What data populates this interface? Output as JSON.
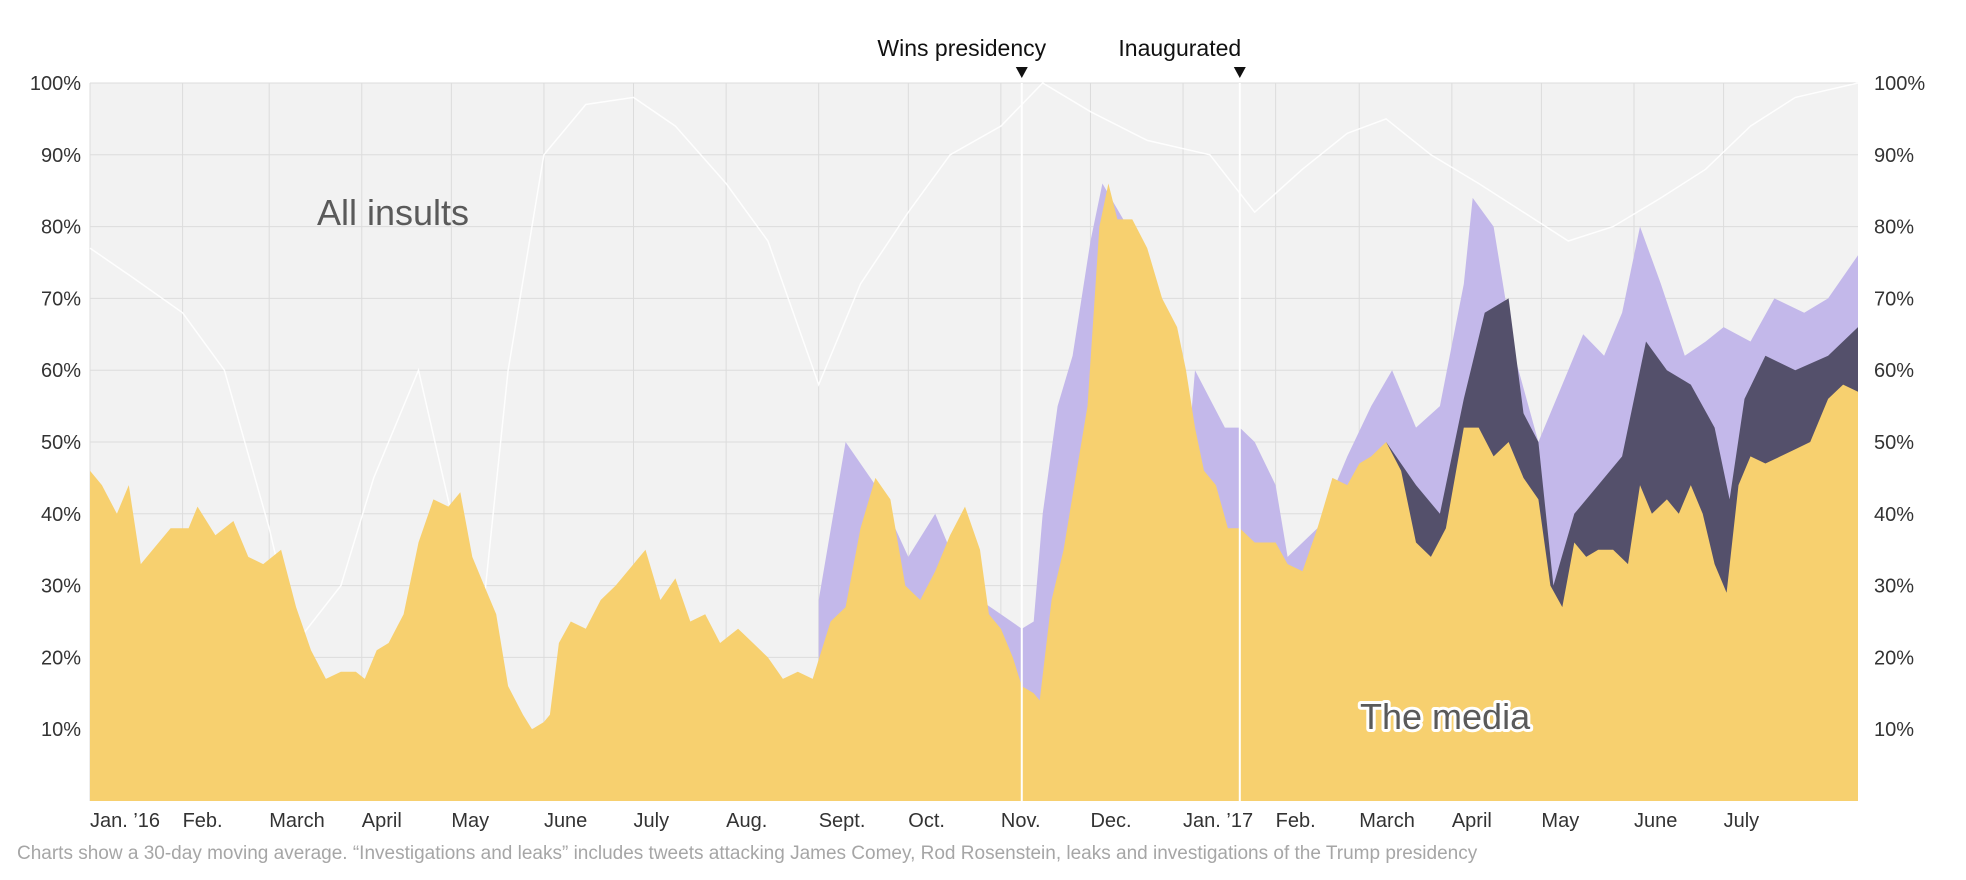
{
  "footnote": "Charts show a 30-day moving average. “Investigations and leaks” includes tweets attacking James Comey, Rod Rosenstein, leaks and investigations of the Trump presidency",
  "chart_data": {
    "type": "area",
    "y_ticks": [
      "10%",
      "20%",
      "30%",
      "40%",
      "50%",
      "60%",
      "70%",
      "80%",
      "90%",
      "100%"
    ],
    "ylim": [
      0,
      100
    ],
    "x_range": [
      "2016-01-01",
      "2017-08-15"
    ],
    "months": [
      {
        "date": "2016-01-01",
        "label": "Jan. ’16"
      },
      {
        "date": "2016-02-01",
        "label": "Feb."
      },
      {
        "date": "2016-03-01",
        "label": "March"
      },
      {
        "date": "2016-04-01",
        "label": "April"
      },
      {
        "date": "2016-05-01",
        "label": "May"
      },
      {
        "date": "2016-06-01",
        "label": "June"
      },
      {
        "date": "2016-07-01",
        "label": "July"
      },
      {
        "date": "2016-08-01",
        "label": "Aug."
      },
      {
        "date": "2016-09-01",
        "label": "Sept."
      },
      {
        "date": "2016-10-01",
        "label": "Oct."
      },
      {
        "date": "2016-11-01",
        "label": "Nov."
      },
      {
        "date": "2016-12-01",
        "label": "Dec."
      },
      {
        "date": "2017-01-01",
        "label": "Jan. ’17"
      },
      {
        "date": "2017-02-01",
        "label": "Feb."
      },
      {
        "date": "2017-03-01",
        "label": "March"
      },
      {
        "date": "2017-04-01",
        "label": "April"
      },
      {
        "date": "2017-05-01",
        "label": "May"
      },
      {
        "date": "2017-06-01",
        "label": "June"
      },
      {
        "date": "2017-07-01",
        "label": "July"
      }
    ],
    "events": [
      {
        "date": "2016-11-08",
        "label": "Wins presidency"
      },
      {
        "date": "2017-01-20",
        "label": "Inaugurated"
      }
    ],
    "area_labels": [
      {
        "text": "All insults",
        "position": "upper-left"
      },
      {
        "text": "The media",
        "position": "lower-right"
      }
    ],
    "colors": {
      "plot_bg": "#f2f2f2",
      "grid": "#dcdcdc",
      "all_insults_line": "#ffffff",
      "media": "#f7d06f",
      "top_layer": "#c3b8ea",
      "middle_layer": "#54506b",
      "event_line": "#ffffff"
    },
    "series": [
      {
        "id": "all_insults",
        "points": [
          [
            "2016-01-01",
            77
          ],
          [
            "2016-01-15",
            73
          ],
          [
            "2016-02-01",
            68
          ],
          [
            "2016-02-15",
            60
          ],
          [
            "2016-03-01",
            38
          ],
          [
            "2016-03-10",
            22
          ],
          [
            "2016-03-25",
            30
          ],
          [
            "2016-04-05",
            45
          ],
          [
            "2016-04-20",
            60
          ],
          [
            "2016-05-01",
            40
          ],
          [
            "2016-05-10",
            20
          ],
          [
            "2016-05-20",
            60
          ],
          [
            "2016-06-01",
            90
          ],
          [
            "2016-06-15",
            97
          ],
          [
            "2016-07-01",
            98
          ],
          [
            "2016-07-15",
            94
          ],
          [
            "2016-08-01",
            86
          ],
          [
            "2016-08-15",
            78
          ],
          [
            "2016-09-01",
            58
          ],
          [
            "2016-09-15",
            72
          ],
          [
            "2016-10-01",
            82
          ],
          [
            "2016-10-15",
            90
          ],
          [
            "2016-11-01",
            94
          ],
          [
            "2016-11-15",
            100
          ],
          [
            "2016-12-01",
            96
          ],
          [
            "2016-12-20",
            92
          ],
          [
            "2017-01-10",
            90
          ],
          [
            "2017-01-25",
            82
          ],
          [
            "2017-02-10",
            88
          ],
          [
            "2017-02-25",
            93
          ],
          [
            "2017-03-10",
            95
          ],
          [
            "2017-03-25",
            90
          ],
          [
            "2017-04-10",
            86
          ],
          [
            "2017-04-25",
            82
          ],
          [
            "2017-05-10",
            78
          ],
          [
            "2017-05-25",
            80
          ],
          [
            "2017-06-10",
            84
          ],
          [
            "2017-06-25",
            88
          ],
          [
            "2017-07-10",
            94
          ],
          [
            "2017-07-25",
            98
          ],
          [
            "2017-08-15",
            100
          ]
        ]
      },
      {
        "id": "top_layer",
        "points": [
          [
            "2016-09-01",
            28
          ],
          [
            "2016-09-10",
            50
          ],
          [
            "2016-09-20",
            44
          ],
          [
            "2016-10-01",
            34
          ],
          [
            "2016-10-10",
            40
          ],
          [
            "2016-10-18",
            32
          ],
          [
            "2016-10-25",
            28
          ],
          [
            "2016-11-01",
            26
          ],
          [
            "2016-11-08",
            24
          ],
          [
            "2016-11-12",
            25
          ],
          [
            "2016-11-15",
            40
          ],
          [
            "2016-11-20",
            55
          ],
          [
            "2016-11-25",
            62
          ],
          [
            "2016-12-01",
            78
          ],
          [
            "2016-12-05",
            86
          ],
          [
            "2016-12-12",
            81
          ],
          [
            "2016-12-20",
            75
          ],
          [
            "2016-12-28",
            66
          ],
          [
            "2017-01-03",
            50
          ],
          [
            "2017-01-05",
            60
          ],
          [
            "2017-01-10",
            56
          ],
          [
            "2017-01-15",
            52
          ],
          [
            "2017-01-20",
            52
          ],
          [
            "2017-01-25",
            50
          ],
          [
            "2017-02-01",
            44
          ],
          [
            "2017-02-05",
            34
          ],
          [
            "2017-02-15",
            38
          ],
          [
            "2017-02-25",
            48
          ],
          [
            "2017-03-05",
            55
          ],
          [
            "2017-03-12",
            60
          ],
          [
            "2017-03-20",
            52
          ],
          [
            "2017-03-28",
            55
          ],
          [
            "2017-04-05",
            72
          ],
          [
            "2017-04-08",
            84
          ],
          [
            "2017-04-15",
            80
          ],
          [
            "2017-04-22",
            62
          ],
          [
            "2017-04-30",
            50
          ],
          [
            "2017-05-08",
            58
          ],
          [
            "2017-05-15",
            65
          ],
          [
            "2017-05-22",
            62
          ],
          [
            "2017-05-28",
            68
          ],
          [
            "2017-06-03",
            80
          ],
          [
            "2017-06-10",
            72
          ],
          [
            "2017-06-18",
            62
          ],
          [
            "2017-06-25",
            64
          ],
          [
            "2017-07-01",
            66
          ],
          [
            "2017-07-10",
            64
          ],
          [
            "2017-07-18",
            70
          ],
          [
            "2017-07-28",
            68
          ],
          [
            "2017-08-05",
            70
          ],
          [
            "2017-08-15",
            76
          ]
        ]
      },
      {
        "id": "middle_layer",
        "points": [
          [
            "2017-03-10",
            50
          ],
          [
            "2017-03-20",
            44
          ],
          [
            "2017-03-28",
            40
          ],
          [
            "2017-04-05",
            56
          ],
          [
            "2017-04-12",
            68
          ],
          [
            "2017-04-20",
            70
          ],
          [
            "2017-04-25",
            54
          ],
          [
            "2017-04-30",
            50
          ],
          [
            "2017-05-05",
            30
          ],
          [
            "2017-05-12",
            40
          ],
          [
            "2017-05-20",
            44
          ],
          [
            "2017-05-28",
            48
          ],
          [
            "2017-06-05",
            64
          ],
          [
            "2017-06-12",
            60
          ],
          [
            "2017-06-20",
            58
          ],
          [
            "2017-06-28",
            52
          ],
          [
            "2017-07-03",
            42
          ],
          [
            "2017-07-08",
            56
          ],
          [
            "2017-07-15",
            62
          ],
          [
            "2017-07-25",
            60
          ],
          [
            "2017-08-05",
            62
          ],
          [
            "2017-08-15",
            66
          ]
        ]
      },
      {
        "id": "media",
        "points": [
          [
            "2016-01-01",
            46
          ],
          [
            "2016-01-05",
            44
          ],
          [
            "2016-01-10",
            40
          ],
          [
            "2016-01-14",
            44
          ],
          [
            "2016-01-18",
            33
          ],
          [
            "2016-01-22",
            35
          ],
          [
            "2016-01-28",
            38
          ],
          [
            "2016-02-03",
            38
          ],
          [
            "2016-02-06",
            41
          ],
          [
            "2016-02-12",
            37
          ],
          [
            "2016-02-18",
            39
          ],
          [
            "2016-02-23",
            34
          ],
          [
            "2016-02-28",
            33
          ],
          [
            "2016-03-05",
            35
          ],
          [
            "2016-03-10",
            27
          ],
          [
            "2016-03-15",
            21
          ],
          [
            "2016-03-20",
            17
          ],
          [
            "2016-03-25",
            18
          ],
          [
            "2016-03-30",
            18
          ],
          [
            "2016-04-02",
            17
          ],
          [
            "2016-04-06",
            21
          ],
          [
            "2016-04-10",
            22
          ],
          [
            "2016-04-15",
            26
          ],
          [
            "2016-04-20",
            36
          ],
          [
            "2016-04-25",
            42
          ],
          [
            "2016-04-30",
            41
          ],
          [
            "2016-05-04",
            43
          ],
          [
            "2016-05-08",
            34
          ],
          [
            "2016-05-12",
            30
          ],
          [
            "2016-05-16",
            26
          ],
          [
            "2016-05-20",
            16
          ],
          [
            "2016-05-25",
            12
          ],
          [
            "2016-05-28",
            10
          ],
          [
            "2016-06-01",
            11
          ],
          [
            "2016-06-03",
            12
          ],
          [
            "2016-06-06",
            22
          ],
          [
            "2016-06-10",
            25
          ],
          [
            "2016-06-15",
            24
          ],
          [
            "2016-06-20",
            28
          ],
          [
            "2016-06-25",
            30
          ],
          [
            "2016-07-01",
            33
          ],
          [
            "2016-07-05",
            35
          ],
          [
            "2016-07-10",
            28
          ],
          [
            "2016-07-15",
            31
          ],
          [
            "2016-07-20",
            25
          ],
          [
            "2016-07-25",
            26
          ],
          [
            "2016-07-30",
            22
          ],
          [
            "2016-08-05",
            24
          ],
          [
            "2016-08-10",
            22
          ],
          [
            "2016-08-15",
            20
          ],
          [
            "2016-08-20",
            17
          ],
          [
            "2016-08-25",
            18
          ],
          [
            "2016-08-30",
            17
          ],
          [
            "2016-09-05",
            25
          ],
          [
            "2016-09-10",
            27
          ],
          [
            "2016-09-15",
            38
          ],
          [
            "2016-09-20",
            45
          ],
          [
            "2016-09-25",
            42
          ],
          [
            "2016-09-30",
            30
          ],
          [
            "2016-10-05",
            28
          ],
          [
            "2016-10-10",
            32
          ],
          [
            "2016-10-15",
            37
          ],
          [
            "2016-10-20",
            41
          ],
          [
            "2016-10-25",
            35
          ],
          [
            "2016-10-28",
            26
          ],
          [
            "2016-11-01",
            24
          ],
          [
            "2016-11-05",
            20
          ],
          [
            "2016-11-08",
            16
          ],
          [
            "2016-11-12",
            15
          ],
          [
            "2016-11-14",
            14
          ],
          [
            "2016-11-18",
            28
          ],
          [
            "2016-11-22",
            35
          ],
          [
            "2016-11-26",
            45
          ],
          [
            "2016-11-30",
            55
          ],
          [
            "2016-12-04",
            80
          ],
          [
            "2016-12-07",
            86
          ],
          [
            "2016-12-10",
            81
          ],
          [
            "2016-12-15",
            81
          ],
          [
            "2016-12-20",
            77
          ],
          [
            "2016-12-25",
            70
          ],
          [
            "2016-12-30",
            66
          ],
          [
            "2017-01-02",
            60
          ],
          [
            "2017-01-05",
            52
          ],
          [
            "2017-01-08",
            46
          ],
          [
            "2017-01-12",
            44
          ],
          [
            "2017-01-16",
            38
          ],
          [
            "2017-01-20",
            38
          ],
          [
            "2017-01-25",
            36
          ],
          [
            "2017-02-01",
            36
          ],
          [
            "2017-02-05",
            33
          ],
          [
            "2017-02-10",
            32
          ],
          [
            "2017-02-15",
            38
          ],
          [
            "2017-02-20",
            45
          ],
          [
            "2017-02-25",
            44
          ],
          [
            "2017-03-01",
            47
          ],
          [
            "2017-03-05",
            48
          ],
          [
            "2017-03-10",
            50
          ],
          [
            "2017-03-15",
            46
          ],
          [
            "2017-03-20",
            36
          ],
          [
            "2017-03-25",
            34
          ],
          [
            "2017-03-30",
            38
          ],
          [
            "2017-04-05",
            52
          ],
          [
            "2017-04-10",
            52
          ],
          [
            "2017-04-15",
            48
          ],
          [
            "2017-04-20",
            50
          ],
          [
            "2017-04-25",
            45
          ],
          [
            "2017-04-30",
            42
          ],
          [
            "2017-05-04",
            30
          ],
          [
            "2017-05-08",
            27
          ],
          [
            "2017-05-12",
            36
          ],
          [
            "2017-05-16",
            34
          ],
          [
            "2017-05-20",
            35
          ],
          [
            "2017-05-25",
            35
          ],
          [
            "2017-05-30",
            33
          ],
          [
            "2017-06-03",
            44
          ],
          [
            "2017-06-07",
            40
          ],
          [
            "2017-06-12",
            42
          ],
          [
            "2017-06-16",
            40
          ],
          [
            "2017-06-20",
            44
          ],
          [
            "2017-06-24",
            40
          ],
          [
            "2017-06-28",
            33
          ],
          [
            "2017-07-02",
            29
          ],
          [
            "2017-07-06",
            44
          ],
          [
            "2017-07-10",
            48
          ],
          [
            "2017-07-15",
            47
          ],
          [
            "2017-07-20",
            48
          ],
          [
            "2017-07-25",
            49
          ],
          [
            "2017-07-30",
            50
          ],
          [
            "2017-08-05",
            56
          ],
          [
            "2017-08-10",
            58
          ],
          [
            "2017-08-15",
            57
          ]
        ]
      }
    ]
  }
}
